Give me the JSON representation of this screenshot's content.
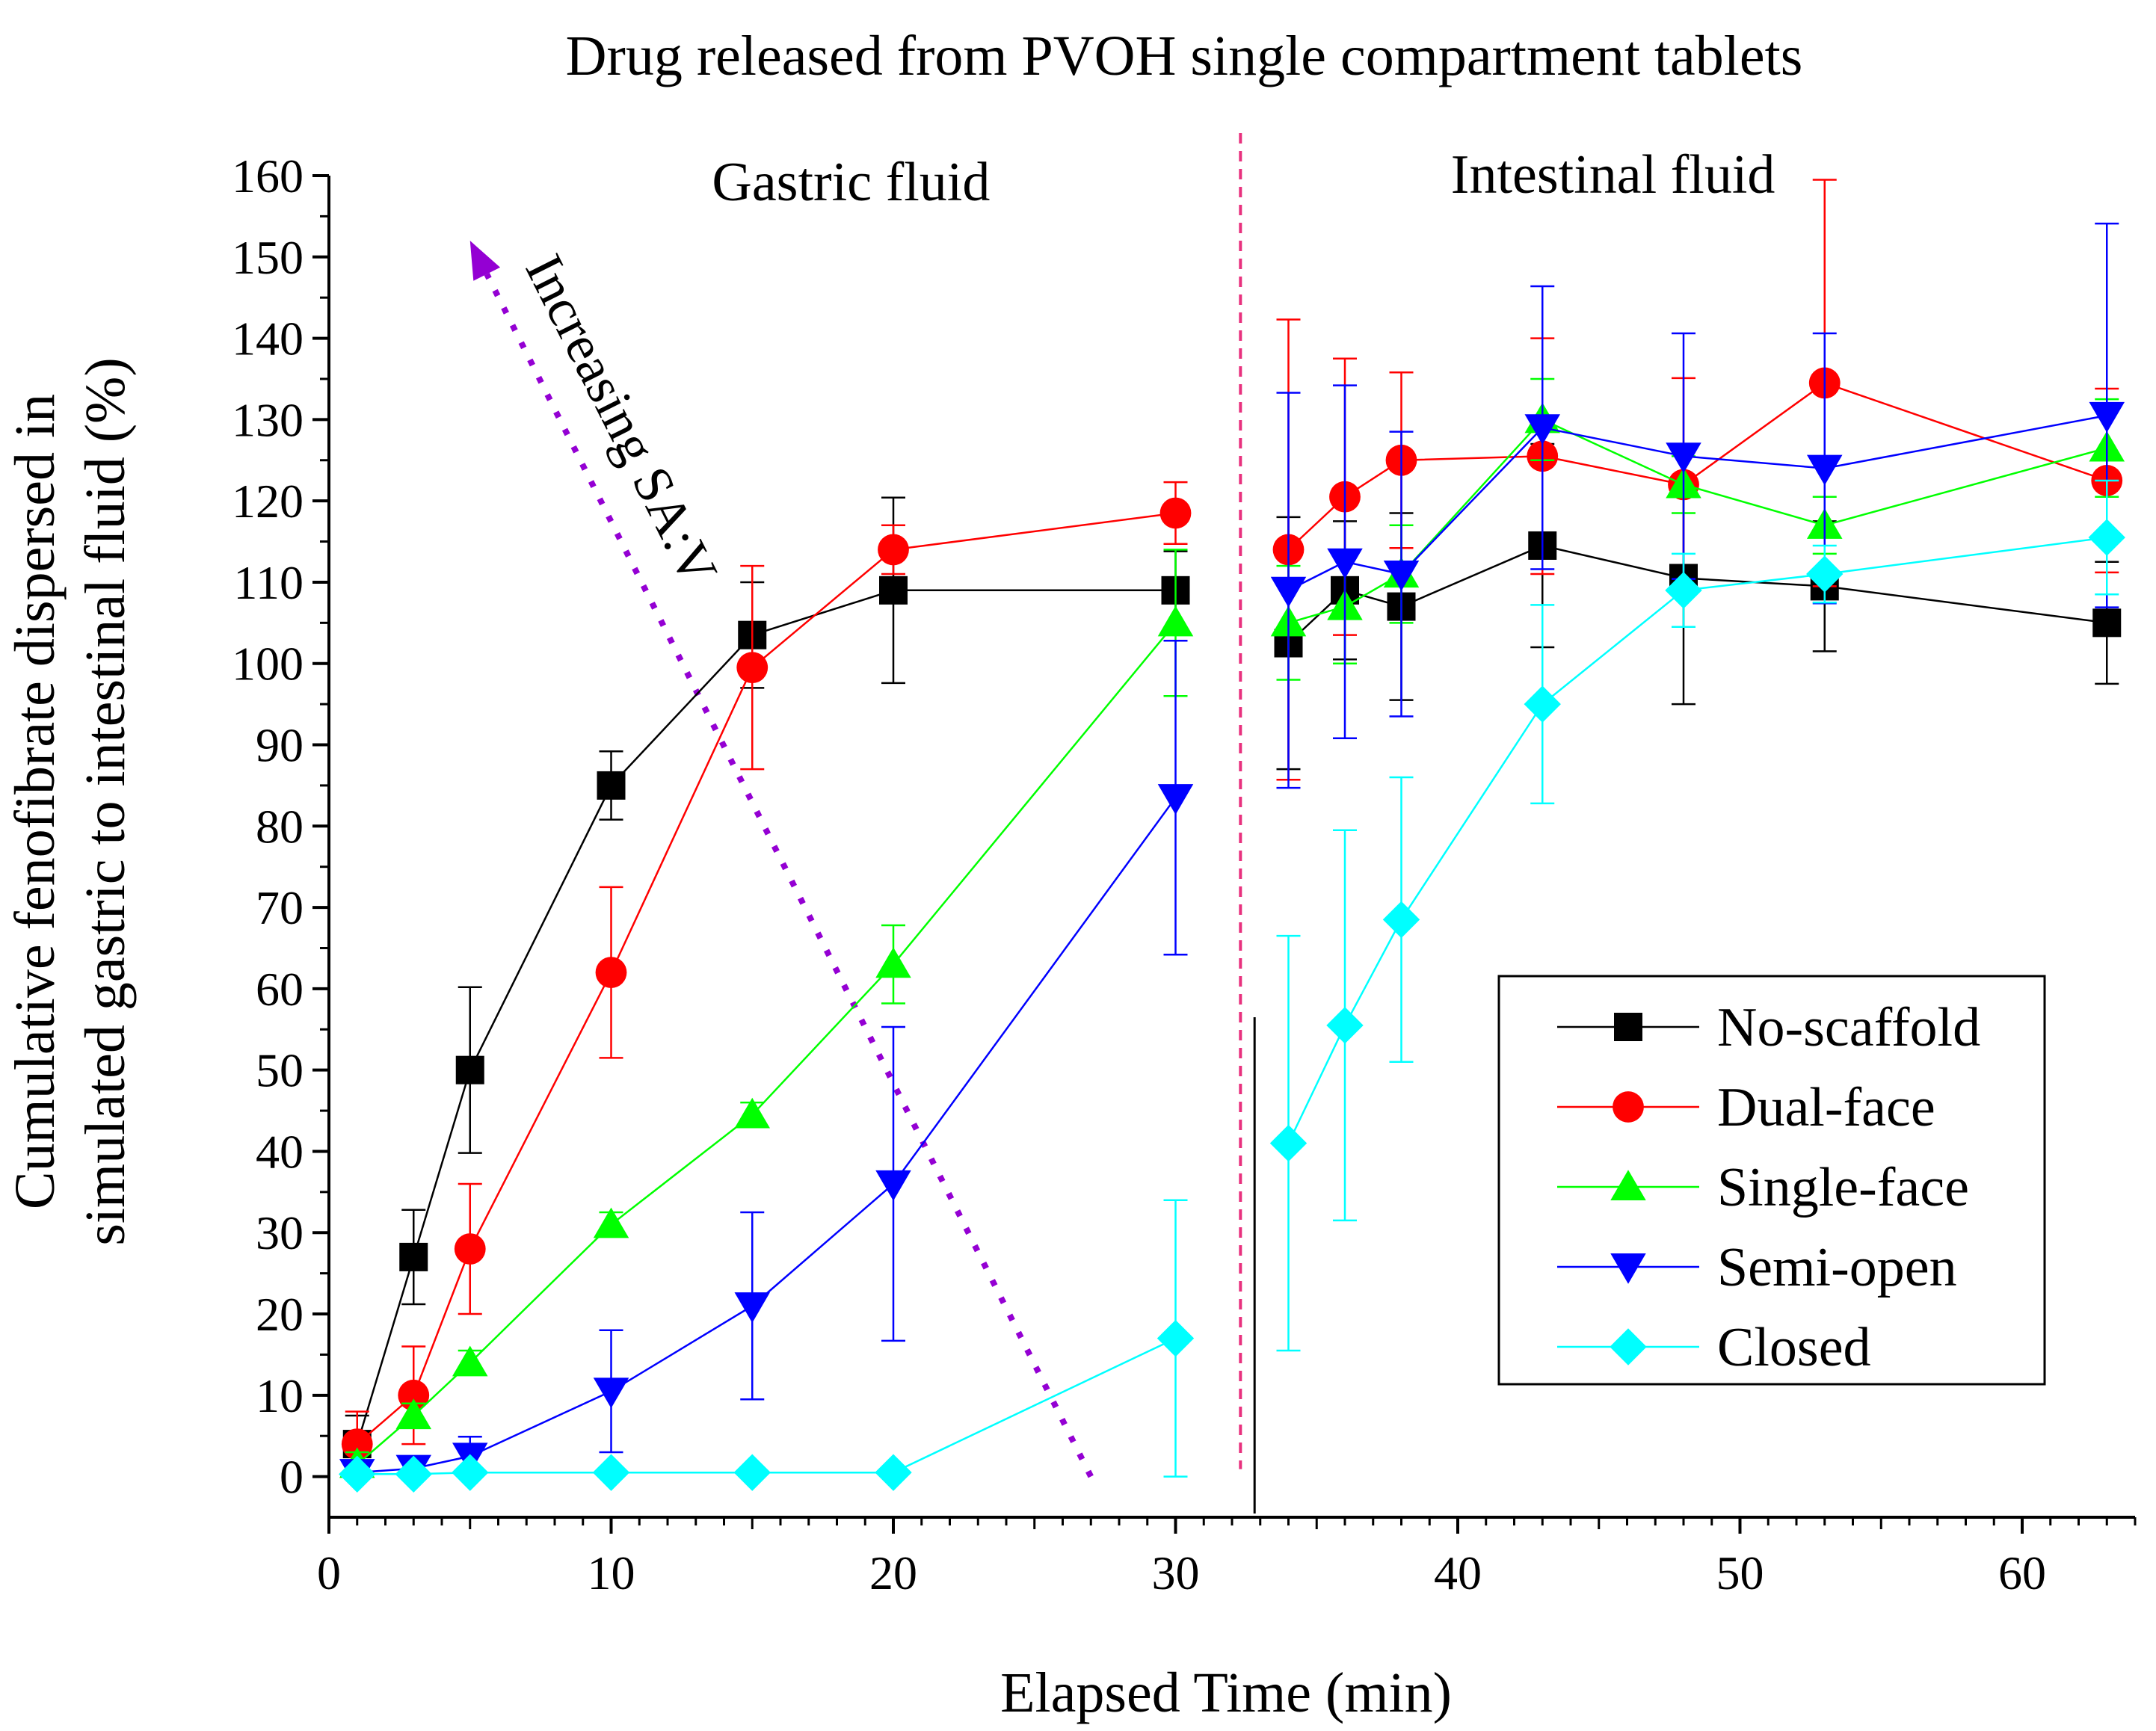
{
  "chart_data": {
    "type": "line",
    "title": "Drug released from PVOH single compartment tablets",
    "xlabel": "Elapsed Time (min)",
    "ylabel_lines": [
      "Cumulative fenofibrate dispersed in",
      "simulated gastric to intestinal fluid (%)"
    ],
    "xlim": [
      0,
      64
    ],
    "ylim": [
      -5,
      160
    ],
    "xticks": [
      0,
      10,
      20,
      30,
      40,
      50,
      60
    ],
    "yticks": [
      0,
      10,
      20,
      30,
      40,
      50,
      60,
      70,
      80,
      90,
      100,
      110,
      120,
      130,
      140,
      150,
      160
    ],
    "phase_labels": {
      "gastric": "Gastric fluid",
      "intestinal": "Intestinal fluid"
    },
    "phase_boundary_x": 32.3,
    "arrow": {
      "label": "Increasing SA:V",
      "from": [
        27,
        0
      ],
      "to": [
        5,
        152
      ],
      "color": "#9400D3"
    },
    "legend_position": "lower-right",
    "series": [
      {
        "name": "No-scaffold",
        "color": "#000000",
        "marker": "square",
        "x": [
          1,
          3,
          5,
          10,
          15,
          20,
          30,
          34,
          36,
          38,
          43,
          48,
          53,
          63
        ],
        "y": [
          4,
          27,
          50,
          85,
          103.5,
          109,
          109,
          102.5,
          109,
          107,
          114.5,
          110.5,
          109.5,
          105
        ],
        "err": [
          3.5,
          5.8,
          10.2,
          4.2,
          6.5,
          11.4,
          4.8,
          15.5,
          8.5,
          11.5,
          12.5,
          15.5,
          8,
          7.5
        ]
      },
      {
        "name": "Dual-face",
        "color": "#FF0000",
        "marker": "circle",
        "x": [
          1,
          3,
          5,
          10,
          15,
          20,
          30,
          34,
          36,
          38,
          43,
          48,
          53,
          63
        ],
        "y": [
          4,
          10,
          28,
          62,
          99.5,
          114,
          118.5,
          114,
          120.5,
          125,
          125.5,
          122,
          134.5,
          122.5
        ],
        "err": [
          4,
          6,
          8,
          10.5,
          12.5,
          3,
          3.8,
          28.3,
          17,
          10.8,
          14.5,
          13.1,
          25,
          11.3
        ]
      },
      {
        "name": "Single-face",
        "color": "#00FF00",
        "marker": "triangle-up",
        "x": [
          1,
          3,
          5,
          10,
          15,
          20,
          30,
          34,
          36,
          38,
          43,
          48,
          53,
          63
        ],
        "y": [
          1.5,
          7.5,
          14,
          31,
          44.5,
          63,
          105,
          105,
          107,
          111,
          130,
          122,
          117,
          126.5
        ],
        "err": [
          1.5,
          1.5,
          1.5,
          1.5,
          1.5,
          4.8,
          9,
          7,
          7,
          6,
          5,
          3.5,
          3.5,
          6
        ]
      },
      {
        "name": "Semi-open",
        "color": "#0000FF",
        "marker": "triangle-down",
        "x": [
          1,
          3,
          5,
          10,
          15,
          20,
          30,
          34,
          36,
          38,
          43,
          48,
          53,
          63
        ],
        "y": [
          0.5,
          1,
          2.5,
          10.5,
          21,
          36,
          83.5,
          109,
          112.5,
          111,
          129,
          125.5,
          124,
          130.5
        ],
        "err": [
          0.8,
          1,
          2.4,
          7.5,
          11.5,
          19.3,
          19.3,
          24.3,
          21.7,
          17.5,
          17.4,
          15.1,
          16.6,
          23.6
        ]
      },
      {
        "name": "Closed",
        "color": "#00FFFF",
        "marker": "diamond",
        "x": [
          1,
          3,
          5,
          10,
          15,
          20,
          30,
          34,
          36,
          38,
          43,
          48,
          53,
          63
        ],
        "y": [
          0.3,
          0.3,
          0.5,
          0.5,
          0.5,
          0.5,
          17,
          41,
          55.5,
          68.5,
          95,
          109,
          111,
          115.5
        ],
        "err": [
          0.5,
          0.5,
          0.5,
          0.5,
          0.5,
          0.5,
          17,
          25.5,
          24,
          17.5,
          12.2,
          4.5,
          3.5,
          7
        ]
      }
    ]
  }
}
